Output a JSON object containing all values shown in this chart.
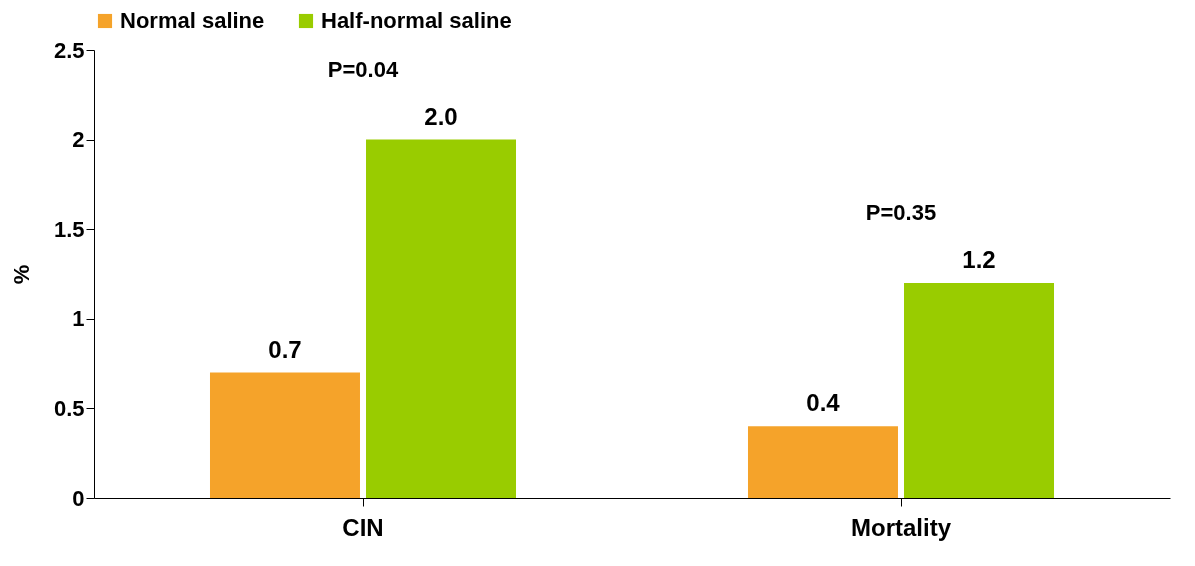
{
  "chart_data": {
    "type": "bar",
    "ylabel": "%",
    "categories": [
      "CIN",
      "Mortality"
    ],
    "series": [
      {
        "name": "Normal saline",
        "color": "#f5a32a",
        "values": [
          0.7,
          0.4
        ],
        "value_labels": [
          "0.7",
          "0.4"
        ]
      },
      {
        "name": "Half-normal saline",
        "color": "#99cc00",
        "values": [
          2.0,
          1.2
        ],
        "value_labels": [
          "2.0",
          "1.2"
        ]
      }
    ],
    "ylim": [
      0,
      2.5
    ],
    "yticks": [
      0,
      0.5,
      1,
      1.5,
      2,
      2.5
    ],
    "grid": false,
    "legend": "top",
    "annotations": [
      "P=0.04",
      "P=0.35"
    ]
  }
}
